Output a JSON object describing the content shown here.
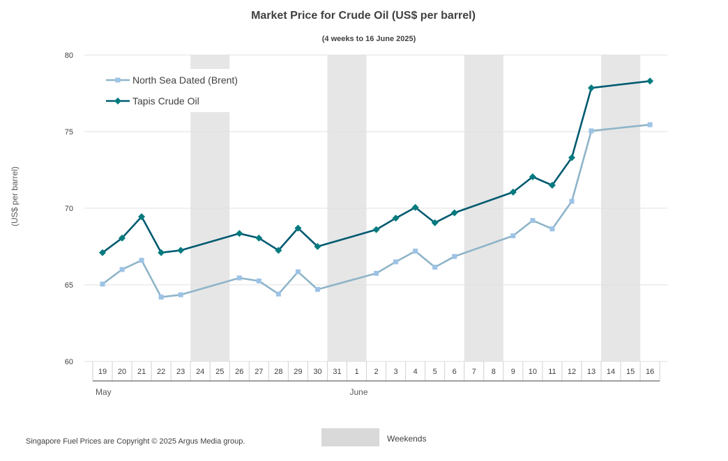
{
  "chart_data": {
    "type": "line",
    "title": "Market Price for Crude Oil (US$ per barrel)",
    "subtitle": "(4 weeks to 16 June 2025)",
    "ylabel": "(US$ per barrel)",
    "ylim": [
      60,
      80
    ],
    "yticks": [
      60,
      65,
      70,
      75,
      80
    ],
    "grid": true,
    "legend_position": "top-left",
    "x_labels": [
      "19",
      "20",
      "21",
      "22",
      "23",
      "24",
      "25",
      "26",
      "27",
      "28",
      "29",
      "30",
      "31",
      "1",
      "2",
      "3",
      "4",
      "5",
      "6",
      "7",
      "8",
      "9",
      "10",
      "11",
      "12",
      "13",
      "14",
      "15",
      "16"
    ],
    "months": [
      {
        "label": "May",
        "start": 0,
        "end": 12
      },
      {
        "label": "June",
        "start": 13,
        "end": 28
      }
    ],
    "weekends": [
      [
        5,
        6
      ],
      [
        12,
        13
      ],
      [
        19,
        20
      ],
      [
        26,
        27
      ]
    ],
    "weekend_label": "Weekends",
    "series": [
      {
        "name": "North Sea Dated (Brent)",
        "color": "#8eb4c8",
        "marker_color": "#9dc3e6",
        "marker": "square",
        "points": [
          {
            "x": 0,
            "y": 65.05
          },
          {
            "x": 1,
            "y": 66.0
          },
          {
            "x": 2,
            "y": 66.6
          },
          {
            "x": 3,
            "y": 64.2
          },
          {
            "x": 4,
            "y": 64.35
          },
          {
            "x": 7,
            "y": 65.45
          },
          {
            "x": 8,
            "y": 65.25
          },
          {
            "x": 9,
            "y": 64.4
          },
          {
            "x": 10,
            "y": 65.85
          },
          {
            "x": 11,
            "y": 64.7
          },
          {
            "x": 14,
            "y": 65.75
          },
          {
            "x": 15,
            "y": 66.5
          },
          {
            "x": 16,
            "y": 67.2
          },
          {
            "x": 17,
            "y": 66.15
          },
          {
            "x": 18,
            "y": 66.85
          },
          {
            "x": 21,
            "y": 68.2
          },
          {
            "x": 22,
            "y": 69.2
          },
          {
            "x": 23,
            "y": 68.65
          },
          {
            "x": 24,
            "y": 70.45
          },
          {
            "x": 25,
            "y": 75.05
          },
          {
            "x": 28,
            "y": 75.45
          }
        ]
      },
      {
        "name": "Tapis Crude Oil",
        "color": "#005a70",
        "marker_color": "#007b7f",
        "marker": "diamond",
        "points": [
          {
            "x": 0,
            "y": 67.1
          },
          {
            "x": 1,
            "y": 68.05
          },
          {
            "x": 2,
            "y": 69.45
          },
          {
            "x": 3,
            "y": 67.1
          },
          {
            "x": 4,
            "y": 67.25
          },
          {
            "x": 7,
            "y": 68.35
          },
          {
            "x": 8,
            "y": 68.05
          },
          {
            "x": 9,
            "y": 67.25
          },
          {
            "x": 10,
            "y": 68.7
          },
          {
            "x": 11,
            "y": 67.5
          },
          {
            "x": 14,
            "y": 68.6
          },
          {
            "x": 15,
            "y": 69.35
          },
          {
            "x": 16,
            "y": 70.05
          },
          {
            "x": 17,
            "y": 69.05
          },
          {
            "x": 18,
            "y": 69.7
          },
          {
            "x": 21,
            "y": 71.05
          },
          {
            "x": 22,
            "y": 72.05
          },
          {
            "x": 23,
            "y": 71.5
          },
          {
            "x": 24,
            "y": 73.3
          },
          {
            "x": 25,
            "y": 77.85
          },
          {
            "x": 28,
            "y": 78.3
          }
        ]
      }
    ]
  },
  "footer": {
    "copyright": "Singapore Fuel Prices are Copyright © 2025 Argus Media group."
  }
}
